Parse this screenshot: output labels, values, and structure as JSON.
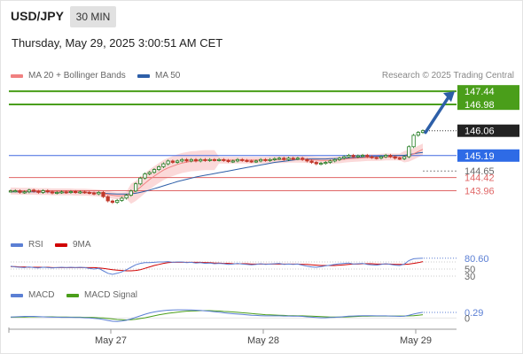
{
  "header": {
    "pair": "USD/JPY",
    "timeframe": "30 MIN",
    "datetime": "Thursday, May 29, 2025 3:00:51 AM CET"
  },
  "legend": {
    "ma20_label": "MA 20 + Bollinger Bands",
    "ma50_label": "MA 50",
    "credit": "Research © 2025 Trading Central",
    "rsi_label": "RSI",
    "ma9_label": "9MA",
    "macd_label": "MACD",
    "macd_signal_label": "MACD Signal"
  },
  "colors": {
    "ma20": "#f08080",
    "ma50": "#2d5fa8",
    "bollinger_fill": "#f9c9c9",
    "resistance": "#4a9e1a",
    "support": "#e06666",
    "pivot": "#4169e1",
    "rsi": "#5b7fd4",
    "ma9": "#d00000",
    "macd": "#5b7fd4",
    "macd_signal": "#4a9e1a",
    "up_candle": "#1f7a1f",
    "down_candle": "#c0392b"
  },
  "chart_data": {
    "type": "candlestick",
    "title": "USD/JPY",
    "x_ticks": [
      "May 27",
      "May 28",
      "May 29"
    ],
    "ylim": [
      143.2,
      147.6
    ],
    "current_price": 146.06,
    "levels": [
      {
        "value": 147.44,
        "label": "147.44",
        "kind": "resistance"
      },
      {
        "value": 146.98,
        "label": "146.98",
        "kind": "resistance"
      },
      {
        "value": 145.19,
        "label": "145.19",
        "kind": "pivot"
      },
      {
        "value": 144.65,
        "label": "144.65",
        "kind": "marker"
      },
      {
        "value": 144.42,
        "label": "144.42",
        "kind": "support"
      },
      {
        "value": 143.96,
        "label": "143.96",
        "kind": "support"
      }
    ],
    "projection": {
      "from": 146.0,
      "to": 147.44
    },
    "close_series": [
      143.95,
      143.96,
      143.9,
      143.92,
      143.98,
      143.94,
      143.9,
      143.96,
      143.92,
      143.88,
      143.9,
      143.92,
      143.9,
      143.93,
      143.9,
      143.92,
      143.9,
      143.88,
      143.85,
      143.9,
      143.75,
      143.6,
      143.55,
      143.62,
      143.7,
      143.8,
      143.95,
      144.2,
      144.4,
      144.55,
      144.6,
      144.7,
      144.8,
      144.9,
      145.0,
      144.95,
      145.0,
      145.05,
      145.0,
      145.05,
      145.0,
      145.05,
      145.02,
      145.05,
      145.03,
      145.05,
      145.02,
      144.98,
      145.0,
      145.05,
      145.02,
      145.0,
      144.98,
      145.0,
      145.05,
      145.02,
      145.05,
      145.08,
      145.1,
      145.05,
      145.1,
      145.08,
      145.1,
      145.05,
      145.0,
      144.95,
      144.9,
      144.92,
      144.95,
      145.0,
      145.05,
      145.1,
      145.15,
      145.2,
      145.15,
      145.18,
      145.2,
      145.15,
      145.12,
      145.1,
      145.15,
      145.2,
      145.15,
      145.1,
      145.08,
      145.15,
      145.5,
      145.9,
      146.0,
      146.06
    ],
    "ma20_series": [
      143.95,
      143.95,
      143.94,
      143.94,
      143.94,
      143.94,
      143.93,
      143.93,
      143.93,
      143.92,
      143.92,
      143.92,
      143.92,
      143.92,
      143.91,
      143.91,
      143.91,
      143.9,
      143.89,
      143.88,
      143.86,
      143.83,
      143.8,
      143.78,
      143.78,
      143.8,
      143.85,
      143.95,
      144.08,
      144.22,
      144.35,
      144.47,
      144.58,
      144.68,
      144.76,
      144.82,
      144.88,
      144.93,
      144.96,
      144.99,
      145.0,
      145.02,
      145.03,
      145.03,
      145.03,
      145.03,
      145.03,
      145.03,
      145.03,
      145.03,
      145.03,
      145.03,
      145.03,
      145.03,
      145.03,
      145.03,
      145.04,
      145.04,
      145.05,
      145.05,
      145.06,
      145.06,
      145.06,
      145.06,
      145.05,
      145.04,
      145.03,
      145.02,
      145.02,
      145.02,
      145.03,
      145.04,
      145.06,
      145.08,
      145.09,
      145.1,
      145.11,
      145.12,
      145.12,
      145.12,
      145.13,
      145.14,
      145.14,
      145.14,
      145.14,
      145.15,
      145.18,
      145.25,
      145.33,
      145.41
    ],
    "ma50_series": [
      143.92,
      143.92,
      143.92,
      143.92,
      143.92,
      143.92,
      143.92,
      143.92,
      143.92,
      143.91,
      143.91,
      143.91,
      143.91,
      143.91,
      143.91,
      143.9,
      143.9,
      143.9,
      143.89,
      143.88,
      143.87,
      143.86,
      143.85,
      143.84,
      143.84,
      143.84,
      143.85,
      143.87,
      143.9,
      143.94,
      143.98,
      144.03,
      144.08,
      144.13,
      144.18,
      144.23,
      144.28,
      144.32,
      144.36,
      144.4,
      144.44,
      144.47,
      144.5,
      144.53,
      144.56,
      144.59,
      144.62,
      144.65,
      144.68,
      144.71,
      144.74,
      144.77,
      144.8,
      144.83,
      144.86,
      144.89,
      144.92,
      144.95,
      144.97,
      144.99,
      145.01,
      145.03,
      145.05,
      145.06,
      145.07,
      145.07,
      145.07,
      145.07,
      145.07,
      145.08,
      145.08,
      145.09,
      145.1,
      145.11,
      145.12,
      145.13,
      145.14,
      145.15,
      145.16,
      145.16,
      145.17,
      145.18,
      145.19,
      145.19,
      145.2,
      145.2,
      145.22,
      145.25,
      145.28,
      145.3
    ],
    "rsi": {
      "label": "RSI",
      "ma_label": "9MA",
      "levels": [
        30,
        50,
        70
      ],
      "ylim": [
        20,
        90
      ],
      "current": 80.6,
      "current_label": "80.60",
      "level_labels": [
        "50",
        "30"
      ],
      "values": [
        58,
        56,
        55,
        54,
        56,
        54,
        53,
        55,
        54,
        53,
        54,
        55,
        54,
        55,
        54,
        55,
        54,
        52,
        50,
        52,
        45,
        38,
        35,
        38,
        42,
        48,
        55,
        62,
        66,
        68,
        68,
        69,
        70,
        70,
        71,
        69,
        70,
        70,
        68,
        69,
        67,
        68,
        66,
        67,
        65,
        66,
        65,
        63,
        64,
        66,
        64,
        63,
        62,
        63,
        65,
        63,
        64,
        65,
        66,
        63,
        64,
        63,
        64,
        61,
        58,
        56,
        55,
        57,
        59,
        61,
        63,
        65,
        66,
        67,
        64,
        65,
        66,
        63,
        62,
        61,
        63,
        65,
        63,
        61,
        60,
        64,
        74,
        79,
        80,
        80.6
      ],
      "ma_values": [
        57,
        57,
        56,
        56,
        55,
        55,
        55,
        55,
        55,
        54,
        54,
        54,
        54,
        54,
        54,
        54,
        54,
        54,
        54,
        53,
        52,
        50,
        48,
        47,
        46,
        45,
        45,
        46,
        48,
        52,
        56,
        60,
        63,
        66,
        68,
        69,
        69,
        69,
        69,
        69,
        69,
        69,
        68,
        68,
        67,
        67,
        66,
        66,
        65,
        65,
        65,
        65,
        64,
        64,
        64,
        64,
        64,
        64,
        64,
        64,
        64,
        64,
        64,
        63,
        63,
        62,
        61,
        60,
        60,
        60,
        60,
        61,
        62,
        63,
        64,
        64,
        65,
        65,
        65,
        64,
        64,
        64,
        64,
        63,
        63,
        63,
        64,
        66,
        68,
        71
      ]
    },
    "macd": {
      "label": "MACD",
      "signal_label": "MACD Signal",
      "zero_label": "0",
      "ylim": [
        -0.4,
        0.7
      ],
      "current": 0.29,
      "current_label": "0.29",
      "macd_values": [
        0.05,
        0.06,
        0.07,
        0.08,
        0.08,
        0.08,
        0.07,
        0.06,
        0.05,
        0.04,
        0.04,
        0.03,
        0.03,
        0.03,
        0.02,
        0.02,
        0.01,
        0.0,
        -0.02,
        -0.04,
        -0.08,
        -0.13,
        -0.17,
        -0.18,
        -0.16,
        -0.12,
        -0.05,
        0.03,
        0.11,
        0.19,
        0.26,
        0.31,
        0.35,
        0.38,
        0.4,
        0.41,
        0.42,
        0.42,
        0.42,
        0.41,
        0.4,
        0.39,
        0.37,
        0.35,
        0.32,
        0.3,
        0.27,
        0.24,
        0.22,
        0.2,
        0.18,
        0.16,
        0.14,
        0.13,
        0.12,
        0.11,
        0.11,
        0.11,
        0.11,
        0.1,
        0.1,
        0.09,
        0.09,
        0.08,
        0.06,
        0.04,
        0.02,
        0.01,
        0.01,
        0.02,
        0.03,
        0.05,
        0.07,
        0.09,
        0.1,
        0.11,
        0.12,
        0.12,
        0.12,
        0.11,
        0.11,
        0.11,
        0.1,
        0.09,
        0.08,
        0.09,
        0.14,
        0.2,
        0.25,
        0.29
      ],
      "signal_values": [
        0.04,
        0.04,
        0.05,
        0.05,
        0.06,
        0.06,
        0.06,
        0.06,
        0.06,
        0.06,
        0.05,
        0.05,
        0.05,
        0.04,
        0.04,
        0.04,
        0.03,
        0.03,
        0.02,
        0.01,
        0.0,
        -0.03,
        -0.05,
        -0.08,
        -0.09,
        -0.1,
        -0.09,
        -0.07,
        -0.03,
        0.01,
        0.06,
        0.11,
        0.16,
        0.2,
        0.24,
        0.27,
        0.3,
        0.33,
        0.35,
        0.36,
        0.37,
        0.38,
        0.38,
        0.38,
        0.37,
        0.36,
        0.34,
        0.33,
        0.31,
        0.29,
        0.27,
        0.25,
        0.23,
        0.21,
        0.19,
        0.17,
        0.16,
        0.15,
        0.14,
        0.13,
        0.12,
        0.12,
        0.11,
        0.11,
        0.1,
        0.09,
        0.08,
        0.07,
        0.06,
        0.05,
        0.05,
        0.05,
        0.05,
        0.06,
        0.07,
        0.08,
        0.09,
        0.09,
        0.1,
        0.1,
        0.1,
        0.1,
        0.1,
        0.1,
        0.1,
        0.1,
        0.11,
        0.12,
        0.14,
        0.17
      ]
    }
  }
}
